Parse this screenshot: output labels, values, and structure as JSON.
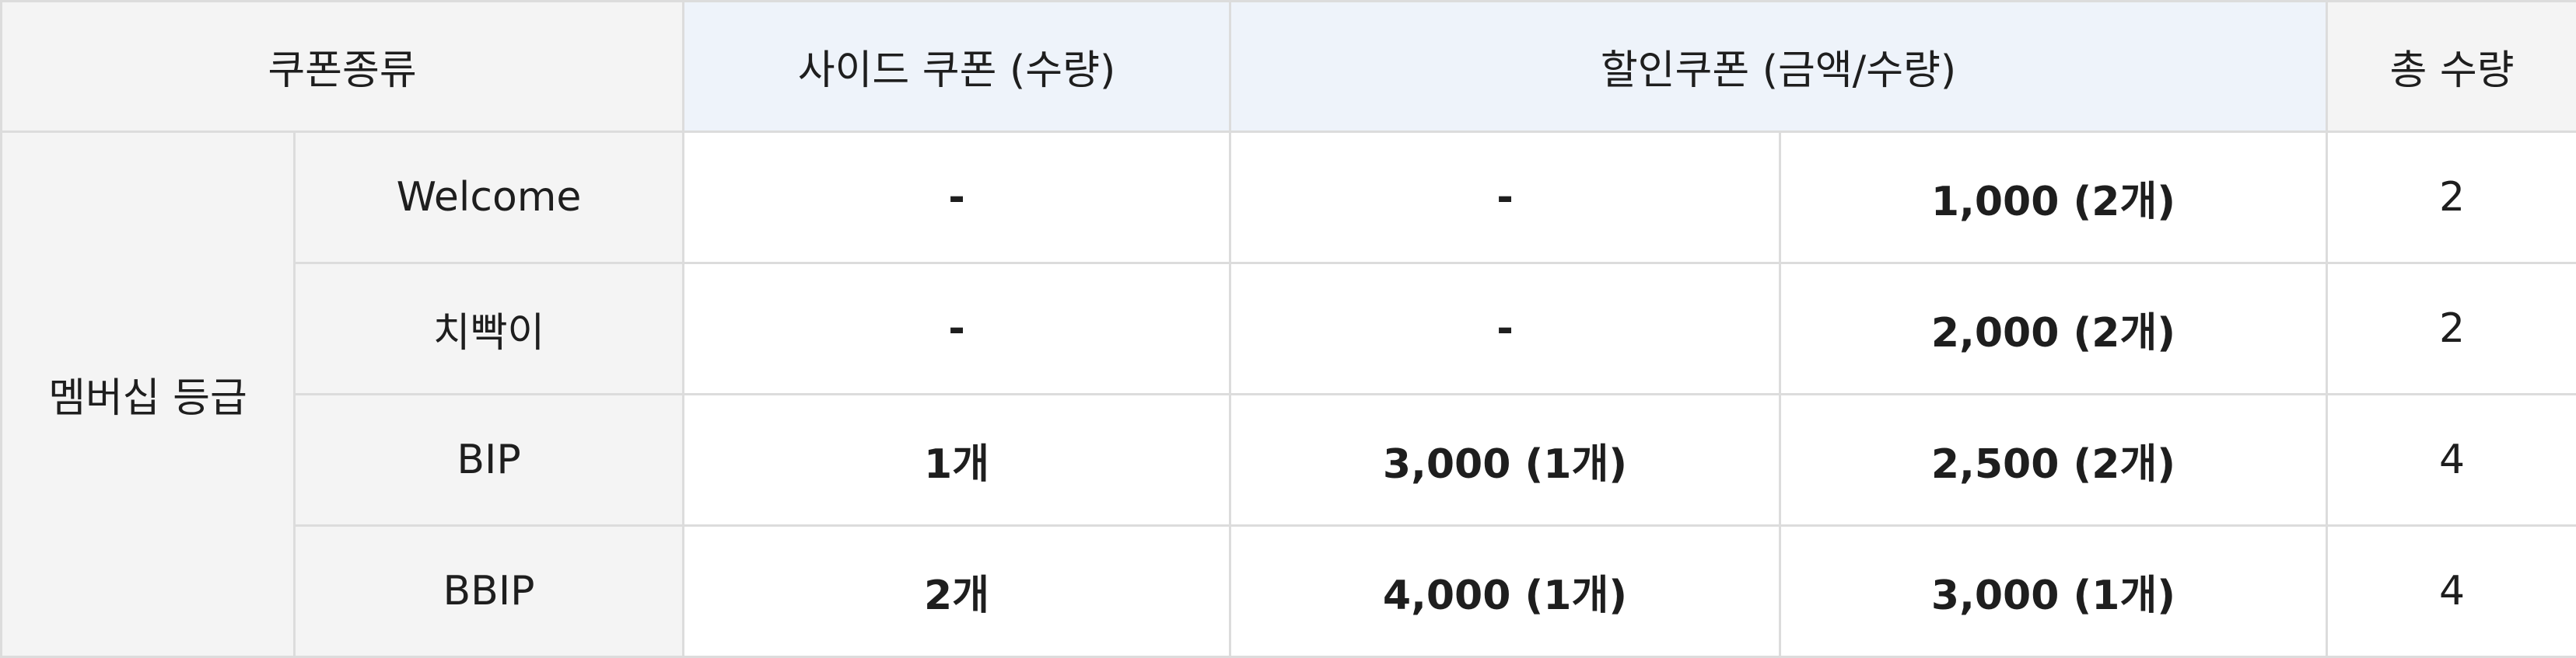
{
  "headers": {
    "coupon_type": "쿠폰종류",
    "side_coupon": "사이드 쿠폰 (수량)",
    "discount_coupon": "할인쿠폰 (금액/수량)",
    "total": "총 수량"
  },
  "group_label": "멤버십 등급",
  "rows": [
    {
      "name": "Welcome",
      "side": "-",
      "discount_a": "-",
      "discount_b": "1,000 (2개)",
      "total": "2"
    },
    {
      "name": "치빡이",
      "side": "-",
      "discount_a": "-",
      "discount_b": "2,000 (2개)",
      "total": "2"
    },
    {
      "name": "BIP",
      "side": "1개",
      "discount_a": "3,000 (1개)",
      "discount_b": "2,500 (2개)",
      "total": "4"
    },
    {
      "name": "BBIP",
      "side": "2개",
      "discount_a": "4,000 (1개)",
      "discount_b": "3,000 (1개)",
      "total": "4"
    }
  ]
}
